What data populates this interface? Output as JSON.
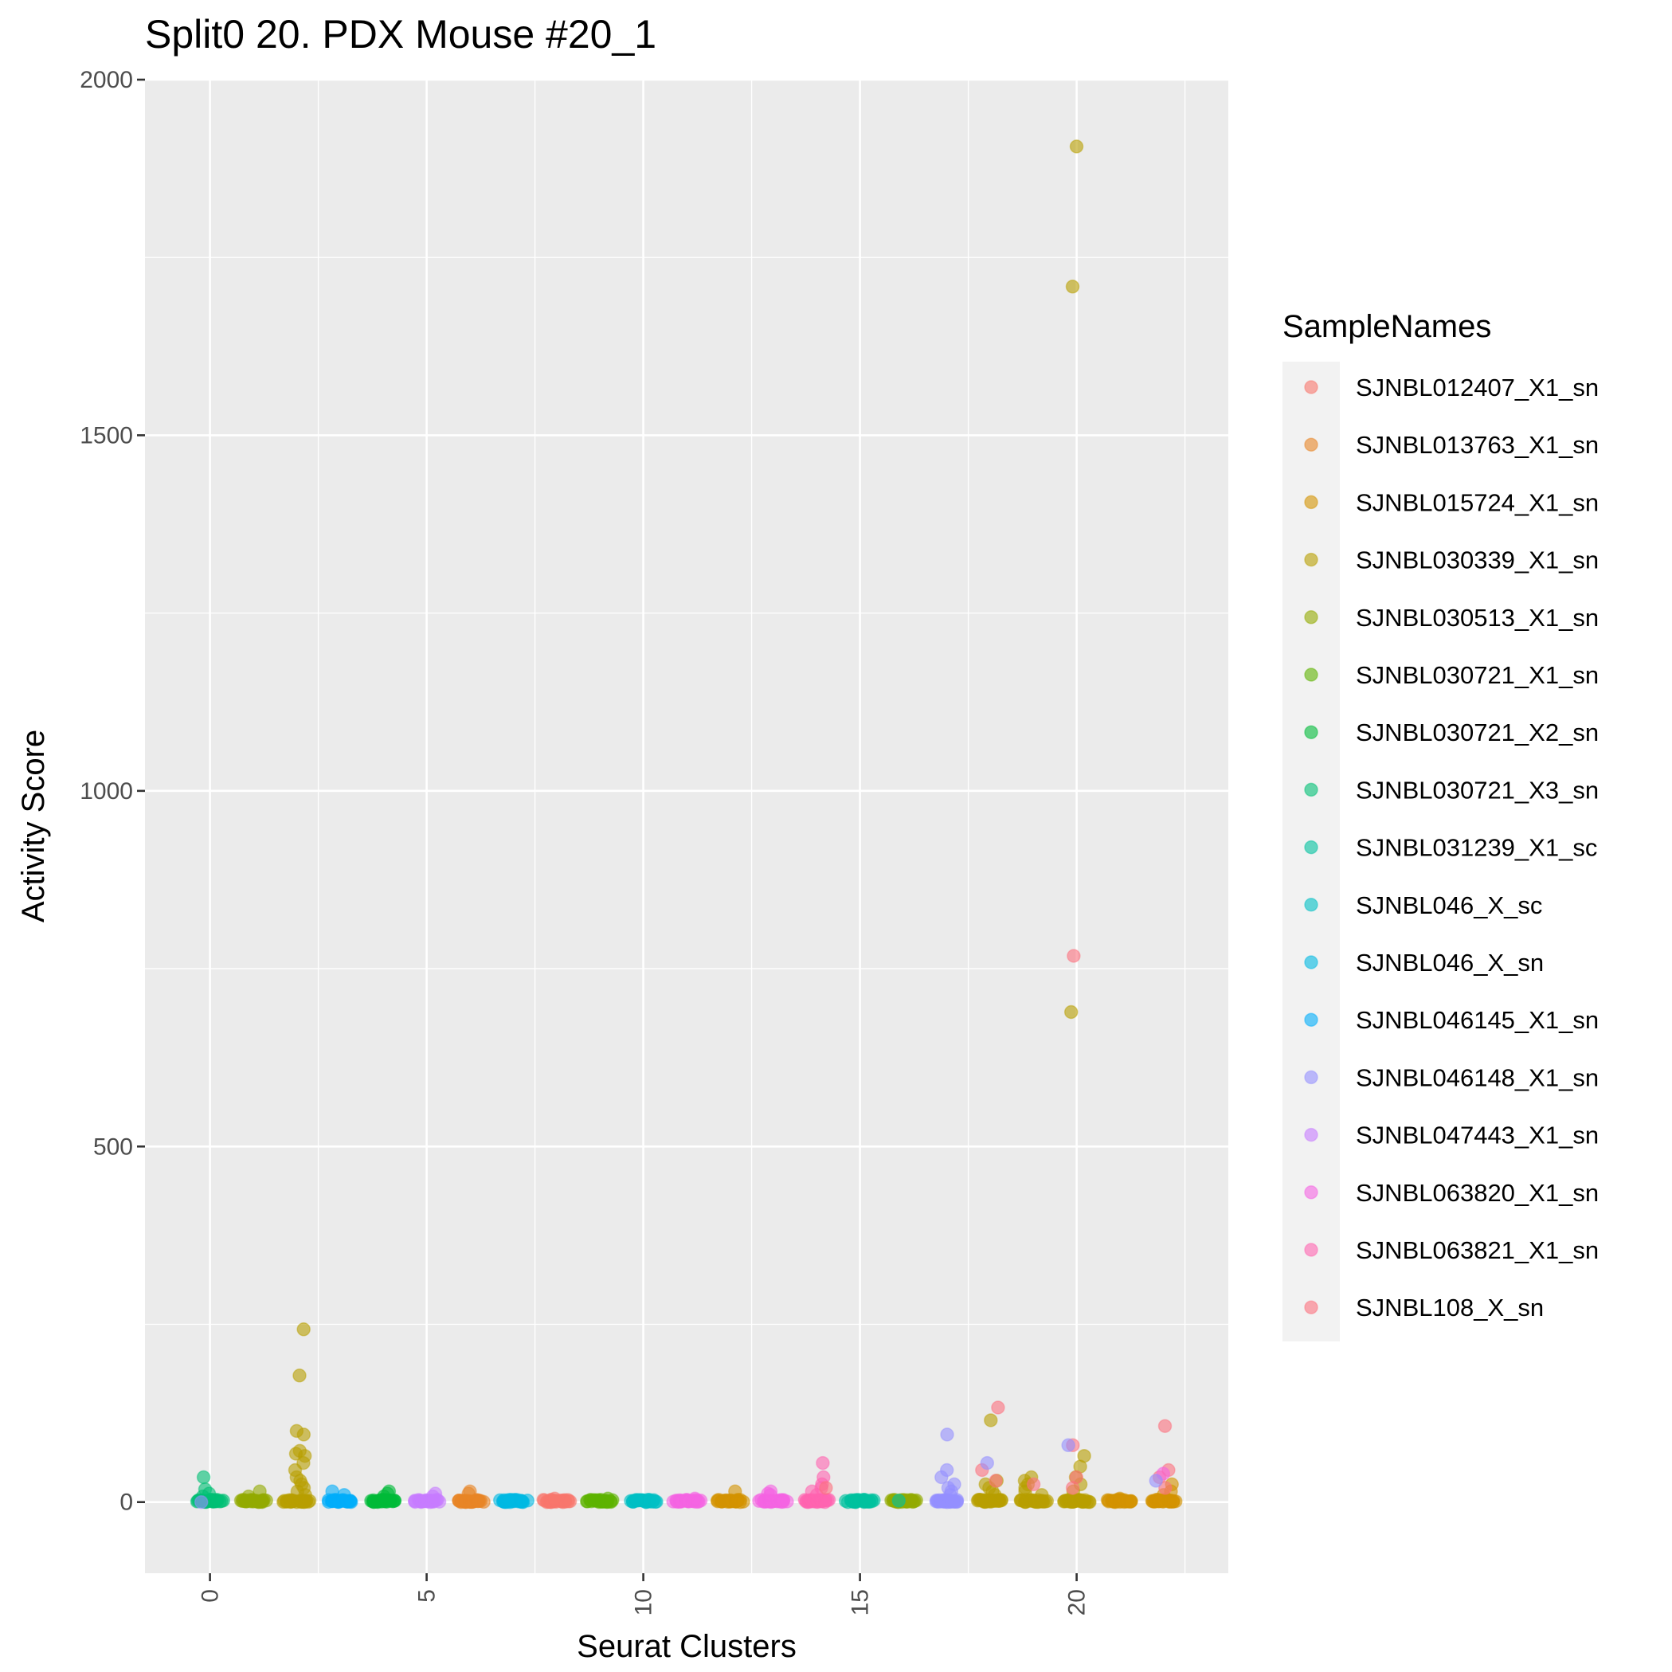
{
  "chart_data": {
    "type": "scatter",
    "title": "Split0 20. PDX Mouse #20_1",
    "xlabel": "Seurat Clusters",
    "ylabel": "Activity Score",
    "xlim": [
      -1.5,
      23.5
    ],
    "ylim": [
      -100,
      2000
    ],
    "xticks": [
      0,
      5,
      10,
      15,
      20
    ],
    "yticks": [
      0,
      500,
      1000,
      1500,
      2000
    ],
    "xtick_labels": [
      "0",
      "5",
      "10",
      "15",
      "20"
    ],
    "ytick_labels": [
      "0",
      "500",
      "1000",
      "1500",
      "2000"
    ],
    "grid": true,
    "background": "#ebebeb",
    "legend": {
      "title": "SampleNames",
      "position": "right",
      "entries": [
        {
          "label": "SJNBL012407_X1_sn",
          "color": "#f8766d"
        },
        {
          "label": "SJNBL013763_X1_sn",
          "color": "#e88526"
        },
        {
          "label": "SJNBL015724_X1_sn",
          "color": "#d39200"
        },
        {
          "label": "SJNBL030339_X1_sn",
          "color": "#b79f00"
        },
        {
          "label": "SJNBL030513_X1_sn",
          "color": "#93aa00"
        },
        {
          "label": "SJNBL030721_X1_sn",
          "color": "#5eb300"
        },
        {
          "label": "SJNBL030721_X2_sn",
          "color": "#00ba38"
        },
        {
          "label": "SJNBL030721_X3_sn",
          "color": "#00bf74"
        },
        {
          "label": "SJNBL031239_X1_sc",
          "color": "#00c19f"
        },
        {
          "label": "SJNBL046_X_sc",
          "color": "#00bfc4"
        },
        {
          "label": "SJNBL046_X_sn",
          "color": "#00b9e3"
        },
        {
          "label": "SJNBL046145_X1_sn",
          "color": "#00adfa"
        },
        {
          "label": "SJNBL046148_X1_sn",
          "color": "#9590ff"
        },
        {
          "label": "SJNBL047443_X1_sn",
          "color": "#c77cff"
        },
        {
          "label": "SJNBL063820_X1_sn",
          "color": "#f564e3"
        },
        {
          "label": "SJNBL063821_X1_sn",
          "color": "#ff64b0"
        },
        {
          "label": "SJNBL108_X_sn",
          "color": "#fc717f"
        }
      ]
    },
    "clusters": [
      {
        "cluster": 0,
        "sample": "SJNBL030721_X3_sn",
        "outliers": [
          35,
          18,
          12,
          8
        ],
        "extra": [
          {
            "sample": "SJNBL046148_X1_sn",
            "values": [
              0
            ]
          }
        ]
      },
      {
        "cluster": 1,
        "sample": "SJNBL030513_X1_sn",
        "outliers": [
          15,
          8
        ],
        "extra": []
      },
      {
        "cluster": 2,
        "sample": "SJNBL030339_X1_sn",
        "outliers": [
          243,
          178,
          100,
          95,
          72,
          68,
          65,
          55,
          45,
          35,
          30,
          25,
          20,
          15,
          10
        ],
        "extra": []
      },
      {
        "cluster": 3,
        "sample": "SJNBL046145_X1_sn",
        "outliers": [
          15,
          10
        ],
        "extra": []
      },
      {
        "cluster": 4,
        "sample": "SJNBL030721_X2_sn",
        "outliers": [
          15,
          12,
          8
        ],
        "extra": []
      },
      {
        "cluster": 5,
        "sample": "SJNBL047443_X1_sn",
        "outliers": [
          12,
          8
        ],
        "extra": []
      },
      {
        "cluster": 6,
        "sample": "SJNBL013763_X1_sn",
        "outliers": [
          15,
          12
        ],
        "extra": []
      },
      {
        "cluster": 7,
        "sample": "SJNBL046_X_sn",
        "outliers": [
          3
        ],
        "extra": []
      },
      {
        "cluster": 8,
        "sample": "SJNBL012407_X1_sn",
        "outliers": [
          5
        ],
        "extra": []
      },
      {
        "cluster": 9,
        "sample": "SJNBL030721_X1_sn",
        "outliers": [
          5
        ],
        "extra": []
      },
      {
        "cluster": 10,
        "sample": "SJNBL046_X_sc",
        "outliers": [
          3
        ],
        "extra": []
      },
      {
        "cluster": 11,
        "sample": "SJNBL063820_X1_sn",
        "outliers": [
          5
        ],
        "extra": []
      },
      {
        "cluster": 12,
        "sample": "SJNBL015724_X1_sn",
        "outliers": [
          15
        ],
        "extra": []
      },
      {
        "cluster": 13,
        "sample": "SJNBL063820_X1_sn",
        "outliers": [
          15,
          12,
          10
        ],
        "extra": []
      },
      {
        "cluster": 14,
        "sample": "SJNBL063821_X1_sn",
        "outliers": [
          55,
          35,
          25,
          20,
          15,
          10
        ],
        "extra": [
          {
            "sample": "SJNBL108_X_sn",
            "values": [
              20
            ]
          }
        ]
      },
      {
        "cluster": 15,
        "sample": "SJNBL031239_X1_sc",
        "outliers": [
          2
        ],
        "extra": []
      },
      {
        "cluster": 16,
        "sample": "SJNBL030513_X1_sn",
        "outliers": [
          3
        ],
        "extra": [
          {
            "sample": "SJNBL031239_X1_sc",
            "values": [
              2
            ]
          }
        ]
      },
      {
        "cluster": 17,
        "sample": "SJNBL046148_X1_sn",
        "outliers": [
          95,
          45,
          35,
          25,
          20,
          15,
          10
        ],
        "extra": []
      },
      {
        "cluster": 18,
        "sample": "SJNBL030339_X1_sn",
        "outliers": [
          115,
          30,
          25,
          20,
          15,
          10
        ],
        "extra": [
          {
            "sample": "SJNBL108_X_sn",
            "values": [
              133,
              45,
              30
            ]
          },
          {
            "sample": "SJNBL046148_X1_sn",
            "values": [
              55
            ]
          }
        ]
      },
      {
        "cluster": 19,
        "sample": "SJNBL030339_X1_sn",
        "outliers": [
          35,
          30,
          25,
          20,
          15,
          10
        ],
        "extra": [
          {
            "sample": "SJNBL108_X_sn",
            "values": [
              25
            ]
          }
        ]
      },
      {
        "cluster": 20,
        "sample": "SJNBL030339_X1_sn",
        "outliers": [
          1906,
          1709,
          689,
          65,
          50,
          35,
          25,
          15
        ],
        "extra": [
          {
            "sample": "SJNBL108_X_sn",
            "values": [
              768,
              80,
              35,
              20
            ]
          },
          {
            "sample": "SJNBL046148_X1_sn",
            "values": [
              80
            ]
          }
        ]
      },
      {
        "cluster": 21,
        "sample": "SJNBL015724_X1_sn",
        "outliers": [
          5
        ],
        "extra": []
      },
      {
        "cluster": 22,
        "sample": "SJNBL015724_X1_sn",
        "outliers": [
          25,
          15,
          10
        ],
        "extra": [
          {
            "sample": "SJNBL108_X_sn",
            "values": [
              107,
              45,
              35,
              20
            ]
          },
          {
            "sample": "SJNBL063820_X1_sn",
            "values": [
              40
            ]
          },
          {
            "sample": "SJNBL046148_X1_sn",
            "values": [
              30
            ]
          }
        ]
      }
    ]
  }
}
